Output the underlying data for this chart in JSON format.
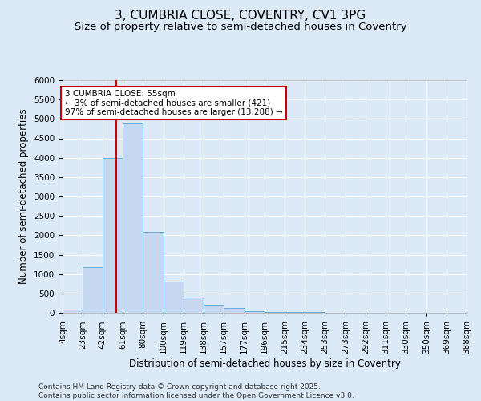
{
  "title": "3, CUMBRIA CLOSE, COVENTRY, CV1 3PG",
  "subtitle": "Size of property relative to semi-detached houses in Coventry",
  "xlabel": "Distribution of semi-detached houses by size in Coventry",
  "ylabel": "Number of semi-detached properties",
  "annotation_title": "3 CUMBRIA CLOSE: 55sqm",
  "annotation_line1": "← 3% of semi-detached houses are smaller (421)",
  "annotation_line2": "97% of semi-detached houses are larger (13,288) →",
  "footer_line1": "Contains HM Land Registry data © Crown copyright and database right 2025.",
  "footer_line2": "Contains public sector information licensed under the Open Government Licence v3.0.",
  "property_size": 55,
  "bin_edges": [
    4,
    23,
    42,
    61,
    80,
    100,
    119,
    138,
    157,
    177,
    196,
    215,
    234,
    253,
    273,
    292,
    311,
    330,
    350,
    369,
    388
  ],
  "bin_labels": [
    "4sqm",
    "23sqm",
    "42sqm",
    "61sqm",
    "80sqm",
    "100sqm",
    "119sqm",
    "138sqm",
    "157sqm",
    "177sqm",
    "196sqm",
    "215sqm",
    "234sqm",
    "253sqm",
    "273sqm",
    "292sqm",
    "311sqm",
    "330sqm",
    "350sqm",
    "369sqm",
    "388sqm"
  ],
  "bar_heights": [
    75,
    1175,
    4000,
    4900,
    2100,
    800,
    400,
    200,
    130,
    50,
    30,
    20,
    15,
    10,
    8,
    5,
    3,
    2,
    1,
    1
  ],
  "bar_color": "#c5d8f0",
  "bar_edge_color": "#6aaad4",
  "red_line_x": 55,
  "ylim": [
    0,
    6000
  ],
  "yticks": [
    0,
    500,
    1000,
    1500,
    2000,
    2500,
    3000,
    3500,
    4000,
    4500,
    5000,
    5500,
    6000
  ],
  "background_color": "#dce9f7",
  "plot_bg_color": "#dce9f7",
  "annotation_box_color": "#ffffff",
  "annotation_box_edge": "#cc0000",
  "red_line_color": "#cc0000",
  "grid_color": "#ffffff",
  "title_fontsize": 11,
  "subtitle_fontsize": 9.5,
  "axis_label_fontsize": 8.5,
  "tick_fontsize": 7.5,
  "annotation_fontsize": 7.5,
  "footer_fontsize": 6.5
}
